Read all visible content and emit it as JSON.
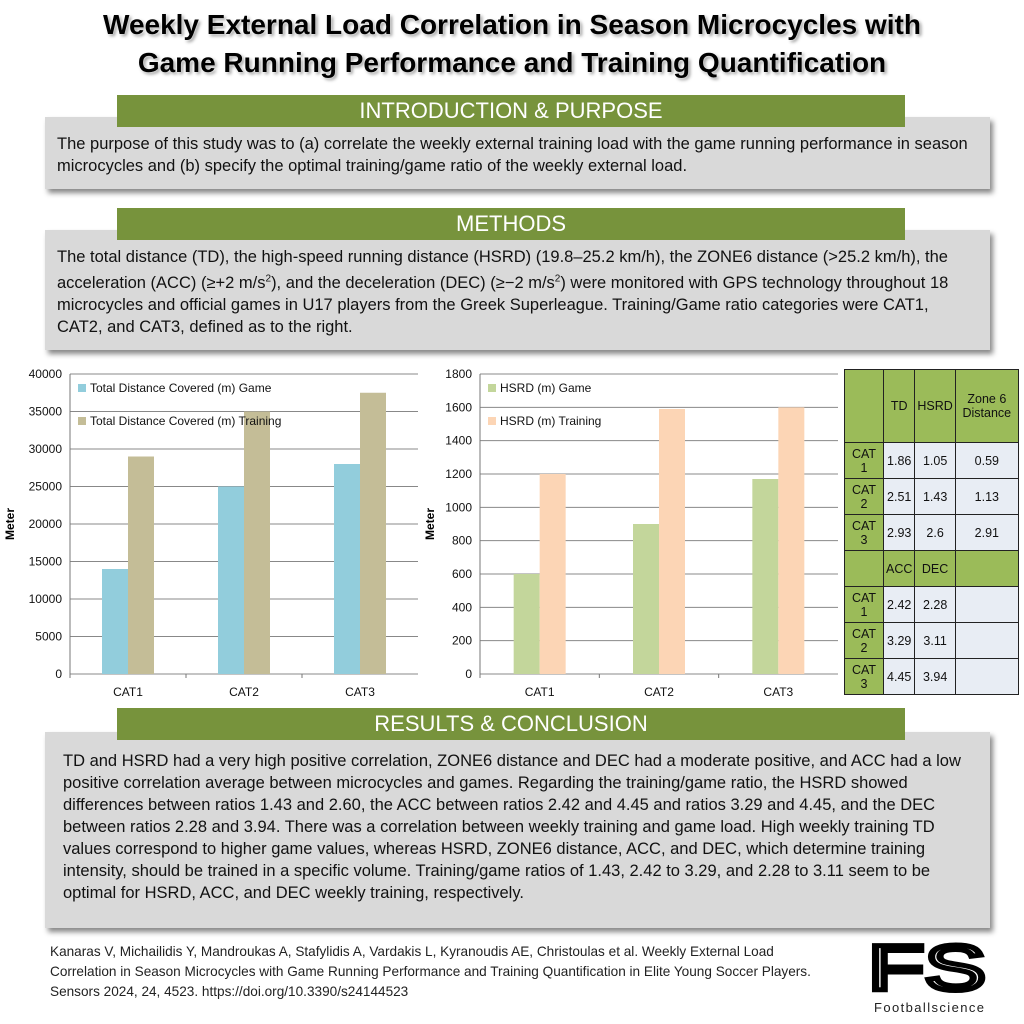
{
  "title": {
    "line1": "Weekly External Load Correlation in Season Microcycles with",
    "line2": "Game Running Performance and Training Quantification"
  },
  "sections": {
    "intro": {
      "heading": "INTRODUCTION & PURPOSE",
      "text": "The purpose of this study was to (a) correlate the weekly external training load with the game running performance in season microcycles and (b) specify the optimal training/game ratio of the weekly external load."
    },
    "methods": {
      "heading": "METHODS",
      "text_html_parts": [
        "The total distance (TD), the high-speed running distance (HSRD) (19.8–25.2 km/h), the ZONE6 distance (>25.2 km/h), the acceleration (ACC) (≥+2 m/s",
        "2",
        "), and the deceleration (DEC) (≥−2 m/s",
        "2",
        ") were monitored with GPS technology throughout 18 microcycles and official games in U17 players from the Greek Superleague. Training/Game ratio categories were CAT1, CAT2, and CAT3, defined as to the right."
      ]
    },
    "results": {
      "heading": "RESULTS & CONCLUSION",
      "text": "TD and HSRD had a very high positive correlation, ZONE6 distance and DEC had a moderate positive, and ACC had a low positive correlation average between microcycles and games. Regarding the training/game ratio, the HSRD showed differences between ratios 1.43 and 2.60, the ACC between ratios 2.42 and 4.45 and ratios 3.29 and 4.45, and the DEC between ratios 2.28 and 3.94. There was a correlation between weekly training and game load. High weekly training TD values correspond to higher game values, whereas HSRD, ZONE6 distance, ACC, and DEC, which determine training intensity, should be trained in a specific volume. Training/game ratios of 1.43, 2.42 to 3.29, and 2.28 to 3.11 seem to be optimal for HSRD, ACC, and DEC weekly training, respectively."
    }
  },
  "chart_data": [
    {
      "type": "bar",
      "categories": [
        "CAT1",
        "CAT2",
        "CAT3"
      ],
      "series": [
        {
          "name": "Total Distance Covered (m) Game",
          "values": [
            14000,
            25000,
            28000
          ],
          "color": "#92cddc"
        },
        {
          "name": "Total Distance Covered (m) Training",
          "values": [
            29000,
            35000,
            37500
          ],
          "color": "#c4bd97"
        }
      ],
      "ylabel": "Meter",
      "ylim": [
        0,
        40000
      ],
      "yticks": [
        "0",
        "5000",
        "10000",
        "15000",
        "20000",
        "25000",
        "30000",
        "35000",
        "40000"
      ],
      "grid": true,
      "legend": "top-left"
    },
    {
      "type": "bar",
      "categories": [
        "CAT1",
        "CAT2",
        "CAT3"
      ],
      "series": [
        {
          "name": "HSRD (m) Game",
          "values": [
            600,
            900,
            1170
          ],
          "color": "#c3d69b"
        },
        {
          "name": "HSRD (m) Training",
          "values": [
            1200,
            1590,
            1600
          ],
          "color": "#fcd5b5"
        }
      ],
      "ylabel": "Meter",
      "ylim": [
        0,
        1800
      ],
      "yticks": [
        "0",
        "200",
        "400",
        "600",
        "800",
        "1000",
        "1200",
        "1400",
        "1600",
        "1800"
      ],
      "grid": true,
      "legend": "top-left"
    }
  ],
  "ratio_table": {
    "header1": [
      "",
      "TD",
      "HSRD",
      "Zone 6 Distance"
    ],
    "rows1": [
      [
        "CAT 1",
        "1.86",
        "1.05",
        "0.59"
      ],
      [
        "CAT 2",
        "2.51",
        "1.43",
        "1.13"
      ],
      [
        "CAT 3",
        "2.93",
        "2.6",
        "2.91"
      ]
    ],
    "header2": [
      "",
      "ACC",
      "DEC",
      ""
    ],
    "rows2": [
      [
        "CAT 1",
        "2.42",
        "2.28",
        ""
      ],
      [
        "CAT 2",
        "3.29",
        "3.11",
        ""
      ],
      [
        "CAT 3",
        "4.45",
        "3.94",
        ""
      ]
    ]
  },
  "footer": {
    "citation": "Kanaras V, Michailidis Y, Mandroukas A, Stafylidis A, Vardakis L, Kyranoudis AE, Christoulas et al. Weekly External Load Correlation in Season Microcycles with Game Running Performance and Training Quantification in Elite Young Soccer Players. Sensors 2024, 24, 4523. https://doi.org/10.3390/s24144523"
  },
  "logo": {
    "letters": "FS",
    "name": "Footballscience"
  },
  "colors": {
    "section_bar": "#77933c",
    "text_box": "#d9d9d9",
    "table_header": "#9bbb59",
    "table_cell": "#e8edf4"
  }
}
